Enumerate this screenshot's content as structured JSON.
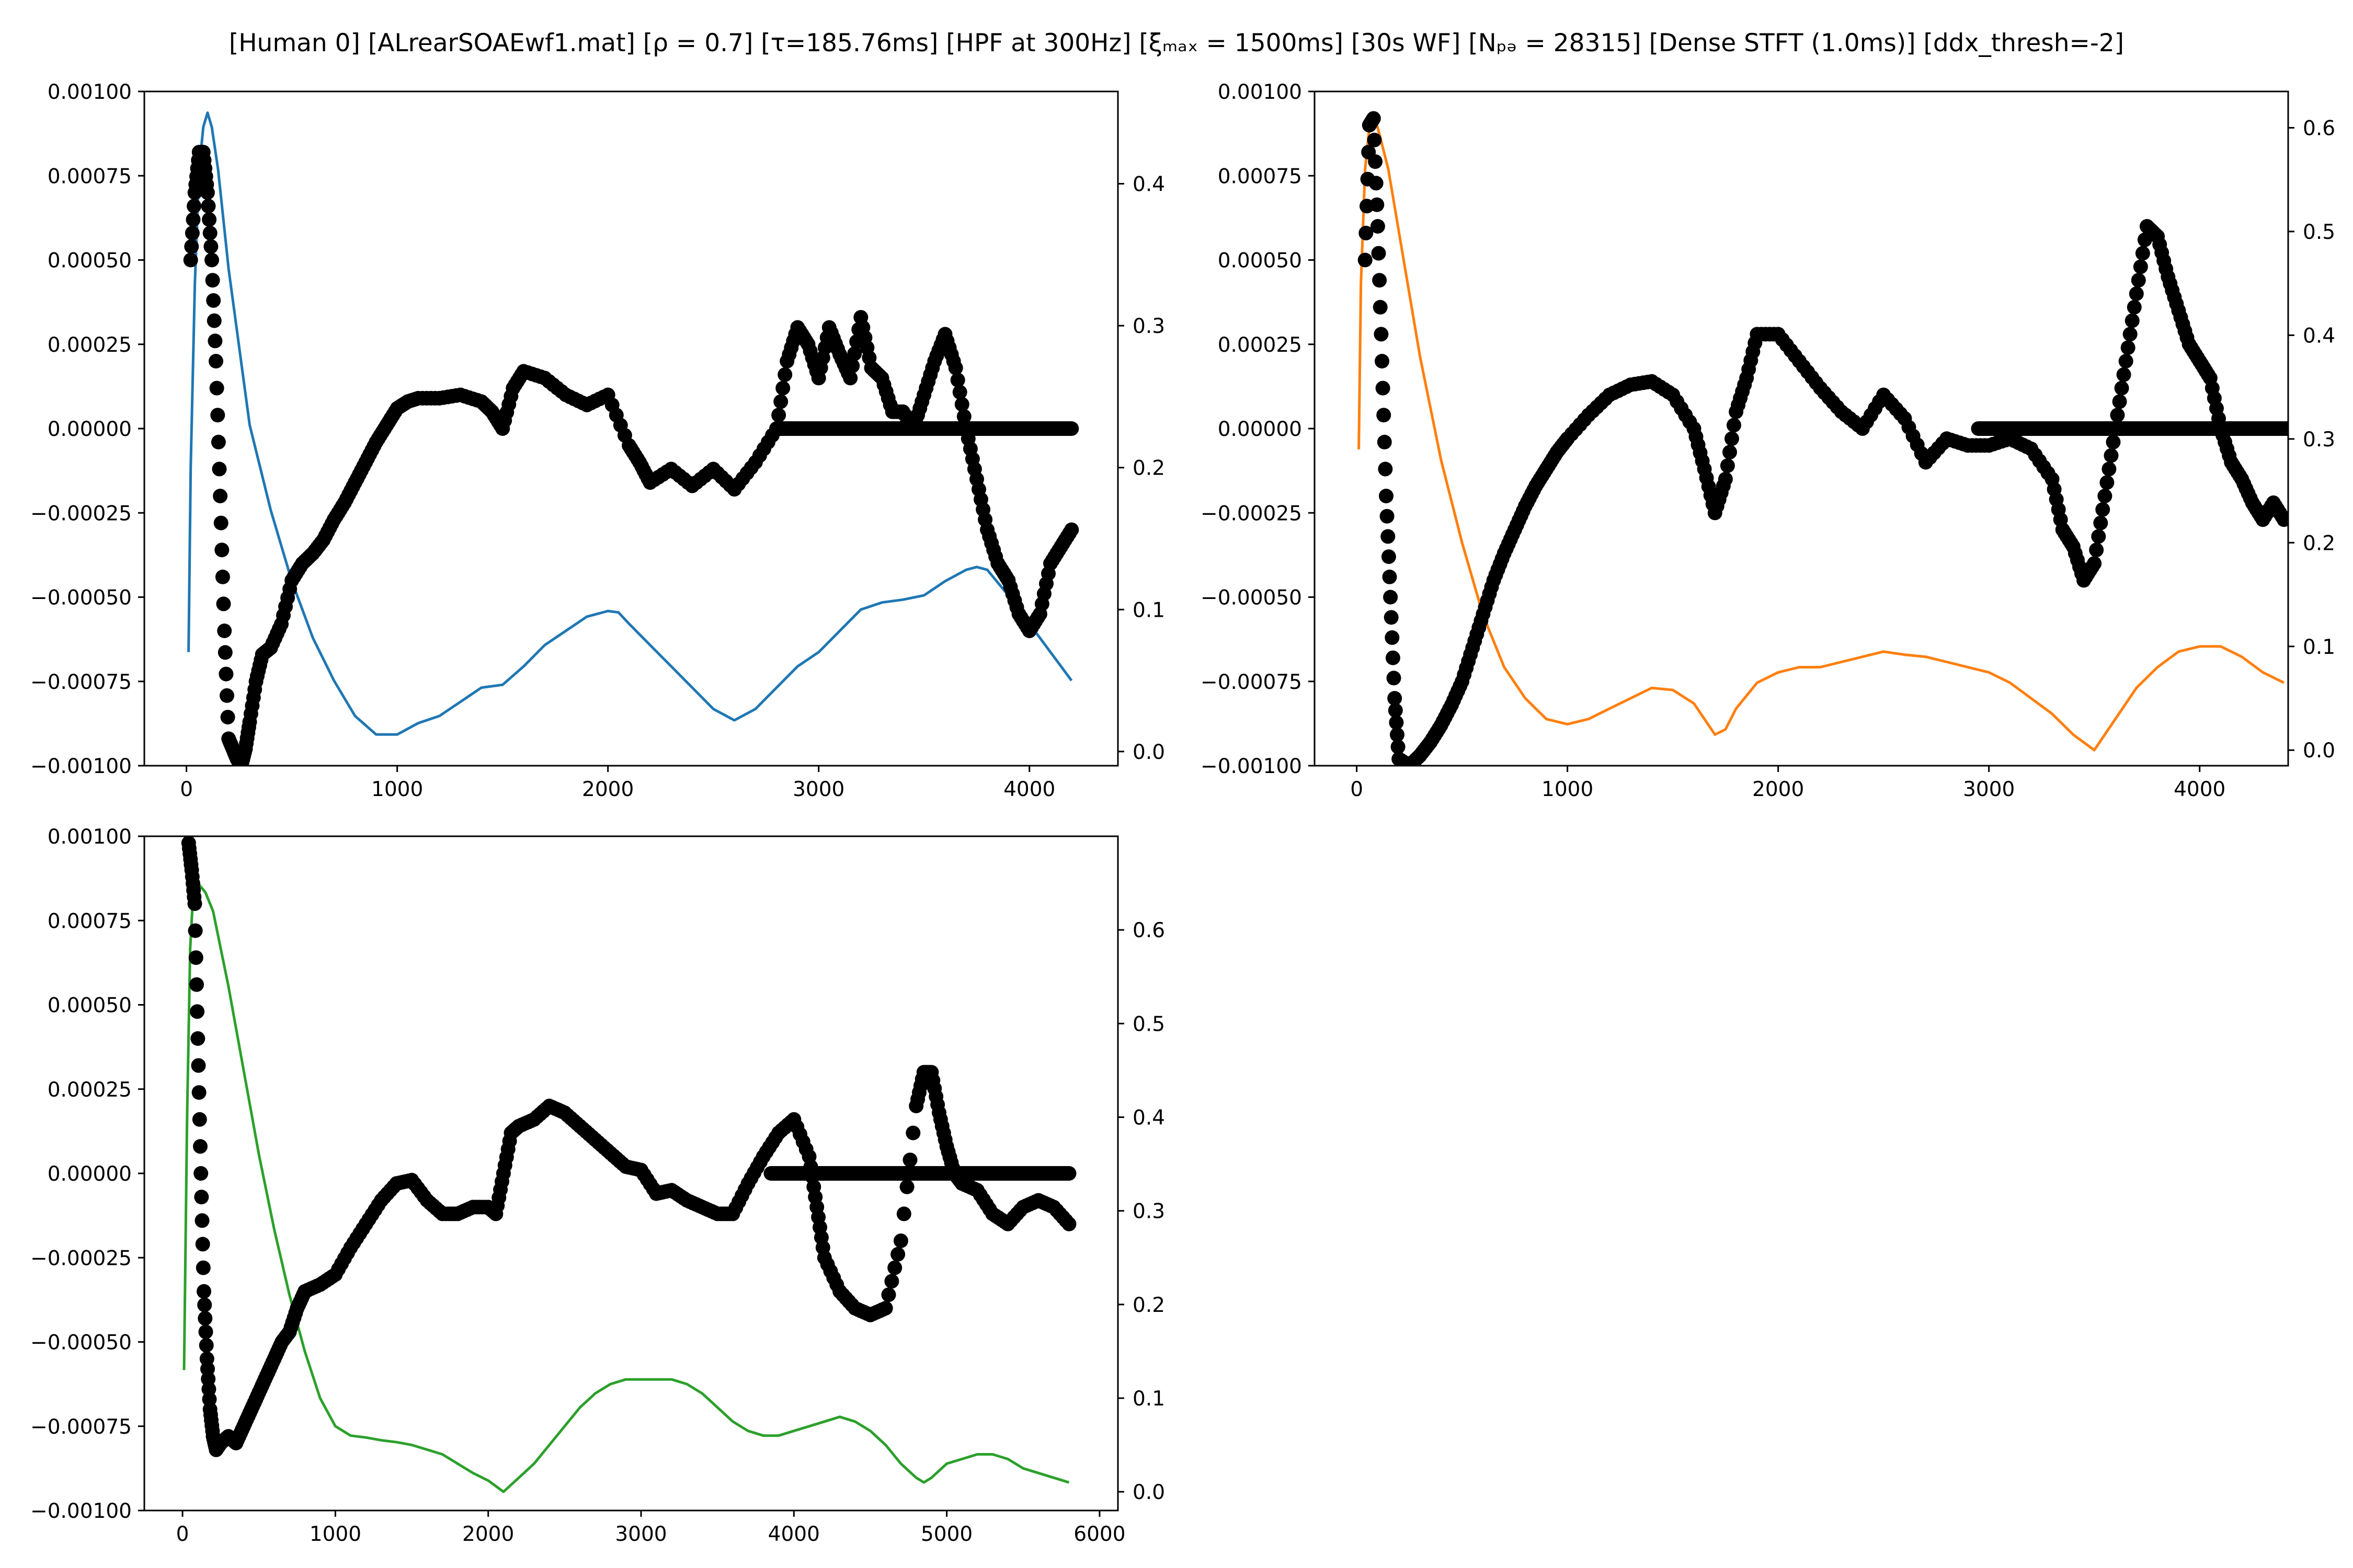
{
  "title": "[Human 0]   [ALrearSOAEwf1.mat]   [ρ = 0.7]   [τ=185.76ms]   [HPF at 300Hz]   [ξₘₐₓ = 1500ms]   [30s WF]   [Nₚₔ = 28315]   [Dense STFT (1.0ms)]   [ddx_thresh=-2]",
  "chart_data": [
    {
      "type": "line+scatter",
      "xlim": [
        -200,
        4420
      ],
      "x_ticks": [
        0,
        1000,
        2000,
        3000,
        4000
      ],
      "left_ylim": [
        -0.001,
        0.001
      ],
      "left_ticks": [
        -0.001,
        -0.00075,
        -0.0005,
        -0.00025,
        0.0,
        0.00025,
        0.0005,
        0.00075,
        0.001
      ],
      "left_tick_labels": [
        "−0.00100",
        "−0.00075",
        "−0.00050",
        "−0.00025",
        "0.00000",
        "0.00025",
        "0.00050",
        "0.00075",
        "0.00100"
      ],
      "right_ylim": [
        -0.01,
        0.465
      ],
      "right_ticks": [
        0.0,
        0.1,
        0.2,
        0.3,
        0.4
      ],
      "right_tick_labels": [
        "0.0",
        "0.1",
        "0.2",
        "0.3",
        "0.4"
      ],
      "line_color": "#1f77b4",
      "line_axis": "right",
      "line": {
        "x": [
          10,
          20,
          40,
          60,
          80,
          100,
          120,
          150,
          200,
          300,
          400,
          500,
          600,
          700,
          800,
          900,
          1000,
          1100,
          1200,
          1300,
          1400,
          1500,
          1600,
          1700,
          1800,
          1900,
          2000,
          2050,
          2100,
          2200,
          2300,
          2400,
          2500,
          2600,
          2700,
          2800,
          2900,
          3000,
          3100,
          3200,
          3300,
          3400,
          3500,
          3600,
          3700,
          3750,
          3800,
          3900,
          4000,
          4100,
          4200
        ],
        "y": [
          0.07,
          0.2,
          0.33,
          0.41,
          0.44,
          0.45,
          0.44,
          0.41,
          0.34,
          0.23,
          0.17,
          0.12,
          0.08,
          0.05,
          0.025,
          0.012,
          0.012,
          0.02,
          0.025,
          0.035,
          0.045,
          0.047,
          0.06,
          0.075,
          0.085,
          0.095,
          0.099,
          0.098,
          0.09,
          0.075,
          0.06,
          0.045,
          0.03,
          0.022,
          0.03,
          0.045,
          0.06,
          0.07,
          0.085,
          0.1,
          0.105,
          0.107,
          0.11,
          0.12,
          0.128,
          0.13,
          0.128,
          0.11,
          0.09,
          0.07,
          0.05
        ]
      },
      "scatter": {
        "x": [
          20,
          40,
          60,
          80,
          100,
          120,
          140,
          160,
          180,
          200,
          220,
          240,
          260,
          280,
          300,
          330,
          360,
          400,
          450,
          500,
          550,
          600,
          650,
          700,
          750,
          800,
          850,
          900,
          950,
          1000,
          1050,
          1100,
          1200,
          1300,
          1400,
          1450,
          1500,
          1550,
          1600,
          1700,
          1800,
          1900,
          2000,
          2100,
          2150,
          2200,
          2300,
          2400,
          2500,
          2600,
          2700,
          2800,
          2850,
          2900,
          2950,
          3000,
          3050,
          3100,
          3150,
          3200,
          3250,
          3300,
          3350,
          3400,
          3450,
          3500,
          3550,
          3600,
          3650,
          3700,
          3750,
          3800,
          3850,
          3900,
          3950,
          4000,
          4050,
          4100,
          4150,
          4200
        ],
        "y": [
          0.0005,
          0.0007,
          0.00082,
          0.00082,
          0.0007,
          0.0005,
          0.0002,
          -0.0002,
          -0.0006,
          -0.00092,
          -0.00095,
          -0.00098,
          -0.001,
          -0.00095,
          -0.00087,
          -0.00075,
          -0.00067,
          -0.00065,
          -0.00058,
          -0.00045,
          -0.0004,
          -0.00037,
          -0.00033,
          -0.00027,
          -0.00022,
          -0.00016,
          -0.0001,
          -4e-05,
          1e-05,
          6e-05,
          8e-05,
          9e-05,
          9e-05,
          0.0001,
          8e-05,
          5e-05,
          0.0,
          0.00012,
          0.00017,
          0.00015,
          0.0001,
          7e-05,
          0.0001,
          -5e-05,
          -0.0001,
          -0.00016,
          -0.00012,
          -0.00017,
          -0.00012,
          -0.00018,
          -0.0001,
          0.0,
          0.0002,
          0.0003,
          0.00025,
          0.00015,
          0.0003,
          0.00022,
          0.00015,
          0.00033,
          0.00018,
          0.00015,
          5e-05,
          5e-05,
          0.0,
          0.0001,
          0.0002,
          0.00028,
          0.00018,
          0.0,
          -0.00015,
          -0.0003,
          -0.0004,
          -0.00045,
          -0.00055,
          -0.0006,
          -0.00055,
          -0.0004,
          -0.00035,
          -0.0003
        ],
        "flat_band": {
          "x_start": 2800,
          "x_end": 4200,
          "y": 0.0
        }
      }
    },
    {
      "type": "line+scatter",
      "xlim": [
        -200,
        4420
      ],
      "x_ticks": [
        0,
        1000,
        2000,
        3000,
        4000
      ],
      "left_ylim": [
        -0.001,
        0.001
      ],
      "left_ticks": [
        -0.001,
        -0.00075,
        -0.0005,
        -0.00025,
        0.0,
        0.00025,
        0.0005,
        0.00075,
        0.001
      ],
      "left_tick_labels": [
        "−0.00100",
        "−0.00075",
        "−0.00050",
        "−0.00025",
        "0.00000",
        "0.00025",
        "0.00050",
        "0.00075",
        "0.00100"
      ],
      "right_ylim": [
        -0.015,
        0.635
      ],
      "right_ticks": [
        0.0,
        0.1,
        0.2,
        0.3,
        0.4,
        0.5,
        0.6
      ],
      "right_tick_labels": [
        "0.0",
        "0.1",
        "0.2",
        "0.3",
        "0.4",
        "0.5",
        "0.6"
      ],
      "line_color": "#ff7f0e",
      "line_axis": "right",
      "line": {
        "x": [
          10,
          20,
          40,
          60,
          80,
          100,
          150,
          200,
          300,
          400,
          500,
          600,
          700,
          800,
          900,
          1000,
          1100,
          1200,
          1300,
          1400,
          1500,
          1600,
          1700,
          1750,
          1800,
          1900,
          2000,
          2100,
          2200,
          2300,
          2400,
          2500,
          2600,
          2700,
          2800,
          2900,
          3000,
          3100,
          3200,
          3300,
          3400,
          3500,
          3600,
          3700,
          3800,
          3900,
          4000,
          4100,
          4200,
          4300,
          4400
        ],
        "y": [
          0.29,
          0.45,
          0.56,
          0.6,
          0.61,
          0.6,
          0.56,
          0.5,
          0.38,
          0.28,
          0.2,
          0.13,
          0.08,
          0.05,
          0.03,
          0.025,
          0.03,
          0.04,
          0.05,
          0.06,
          0.058,
          0.045,
          0.015,
          0.02,
          0.04,
          0.065,
          0.075,
          0.08,
          0.08,
          0.085,
          0.09,
          0.095,
          0.092,
          0.09,
          0.085,
          0.08,
          0.075,
          0.065,
          0.05,
          0.035,
          0.015,
          0.0,
          0.03,
          0.06,
          0.08,
          0.095,
          0.1,
          0.1,
          0.09,
          0.075,
          0.065
        ]
      },
      "scatter": {
        "x": [
          40,
          60,
          80,
          100,
          120,
          140,
          160,
          180,
          200,
          250,
          300,
          350,
          400,
          450,
          500,
          550,
          600,
          650,
          700,
          750,
          800,
          850,
          900,
          950,
          1000,
          1100,
          1200,
          1300,
          1400,
          1500,
          1600,
          1650,
          1700,
          1750,
          1800,
          1850,
          1900,
          2000,
          2100,
          2200,
          2300,
          2400,
          2500,
          2600,
          2700,
          2800,
          2900,
          3000,
          3100,
          3200,
          3300,
          3350,
          3400,
          3450,
          3500,
          3550,
          3600,
          3650,
          3700,
          3750,
          3800,
          3850,
          3900,
          3950,
          4000,
          4050,
          4100,
          4150,
          4200,
          4250,
          4300,
          4350,
          4400
        ],
        "y": [
          0.0005,
          0.0009,
          0.00092,
          0.0006,
          0.0002,
          -0.0002,
          -0.0005,
          -0.0008,
          -0.00098,
          -0.001,
          -0.00097,
          -0.00093,
          -0.00088,
          -0.00082,
          -0.00075,
          -0.00065,
          -0.00055,
          -0.00045,
          -0.00037,
          -0.0003,
          -0.00023,
          -0.00017,
          -0.00012,
          -7e-05,
          -3e-05,
          4e-05,
          0.0001,
          0.00013,
          0.00014,
          0.0001,
          0.0,
          -0.00012,
          -0.00025,
          -0.00015,
          5e-05,
          0.00015,
          0.00028,
          0.00028,
          0.0002,
          0.00012,
          5e-05,
          0.0,
          0.0001,
          3e-05,
          -0.0001,
          -3e-05,
          -5e-05,
          -5e-05,
          -3e-05,
          -6e-05,
          -0.00015,
          -0.0003,
          -0.00035,
          -0.00045,
          -0.0004,
          -0.0002,
          0.0,
          0.0002,
          0.0004,
          0.0006,
          0.00057,
          0.00045,
          0.00035,
          0.00025,
          0.0002,
          0.00015,
          0.0,
          -0.0001,
          -0.00015,
          -0.00022,
          -0.00027,
          -0.00022,
          -0.00027
        ]
      },
      "flat_band": {
        "x_start": 2950,
        "x_end": 4420,
        "y": 0.0
      }
    },
    {
      "type": "line+scatter",
      "xlim": [
        -250,
        6120
      ],
      "x_ticks": [
        0,
        1000,
        2000,
        3000,
        4000,
        5000,
        6000
      ],
      "left_ylim": [
        -0.001,
        0.001
      ],
      "left_ticks": [
        -0.001,
        -0.00075,
        -0.0005,
        -0.00025,
        0.0,
        0.00025,
        0.0005,
        0.00075,
        0.001
      ],
      "left_tick_labels": [
        "−0.00100",
        "−0.00075",
        "−0.00050",
        "−0.00025",
        "0.00000",
        "0.00025",
        "0.00050",
        "0.00075",
        "0.00100"
      ],
      "right_ylim": [
        -0.02,
        0.7
      ],
      "right_ticks": [
        0.0,
        0.1,
        0.2,
        0.3,
        0.4,
        0.5,
        0.6
      ],
      "right_tick_labels": [
        "0.0",
        "0.1",
        "0.2",
        "0.3",
        "0.4",
        "0.5",
        "0.6"
      ],
      "line_color": "#2ca02c",
      "line_axis": "right",
      "line": {
        "x": [
          10,
          30,
          50,
          70,
          100,
          150,
          200,
          300,
          400,
          500,
          600,
          700,
          800,
          900,
          1000,
          1100,
          1200,
          1300,
          1400,
          1500,
          1600,
          1700,
          1800,
          1900,
          2000,
          2100,
          2200,
          2300,
          2400,
          2500,
          2600,
          2700,
          2800,
          2900,
          3000,
          3100,
          3200,
          3300,
          3400,
          3500,
          3600,
          3700,
          3800,
          3900,
          4000,
          4100,
          4200,
          4300,
          4400,
          4500,
          4600,
          4700,
          4800,
          4850,
          4900,
          5000,
          5100,
          5200,
          5300,
          5400,
          5500,
          5600,
          5700,
          5800
        ],
        "y": [
          0.13,
          0.4,
          0.58,
          0.64,
          0.65,
          0.64,
          0.62,
          0.54,
          0.45,
          0.36,
          0.28,
          0.21,
          0.15,
          0.1,
          0.07,
          0.06,
          0.058,
          0.055,
          0.053,
          0.05,
          0.045,
          0.04,
          0.03,
          0.02,
          0.012,
          0.0,
          0.015,
          0.03,
          0.05,
          0.07,
          0.09,
          0.105,
          0.115,
          0.12,
          0.12,
          0.12,
          0.12,
          0.115,
          0.105,
          0.09,
          0.075,
          0.065,
          0.06,
          0.06,
          0.065,
          0.07,
          0.075,
          0.08,
          0.075,
          0.065,
          0.05,
          0.03,
          0.015,
          0.01,
          0.015,
          0.03,
          0.035,
          0.04,
          0.04,
          0.035,
          0.025,
          0.02,
          0.015,
          0.01
        ]
      },
      "scatter": {
        "x": [
          40,
          60,
          80,
          100,
          120,
          140,
          160,
          180,
          200,
          220,
          250,
          300,
          350,
          400,
          450,
          500,
          550,
          600,
          650,
          700,
          750,
          800,
          900,
          1000,
          1100,
          1200,
          1300,
          1400,
          1500,
          1600,
          1700,
          1800,
          1900,
          2000,
          2050,
          2100,
          2150,
          2200,
          2300,
          2400,
          2500,
          2600,
          2700,
          2800,
          2900,
          3000,
          3100,
          3200,
          3300,
          3400,
          3500,
          3600,
          3700,
          3800,
          3900,
          4000,
          4100,
          4150,
          4200,
          4300,
          4400,
          4500,
          4600,
          4700,
          4800,
          4850,
          4900,
          4950,
          5000,
          5050,
          5100,
          5200,
          5300,
          5400,
          5500,
          5600,
          5700,
          5800
        ],
        "y": [
          0.00098,
          0.0009,
          0.0008,
          0.0004,
          0.0,
          -0.00035,
          -0.00055,
          -0.0007,
          -0.00078,
          -0.00082,
          -0.0008,
          -0.00078,
          -0.0008,
          -0.00075,
          -0.0007,
          -0.00065,
          -0.0006,
          -0.00055,
          -0.0005,
          -0.00047,
          -0.0004,
          -0.00035,
          -0.00033,
          -0.0003,
          -0.00022,
          -0.00015,
          -8e-05,
          -3e-05,
          -2e-05,
          -8e-05,
          -0.00012,
          -0.00012,
          -0.0001,
          -0.0001,
          -0.00012,
          0.0,
          0.00012,
          0.00014,
          0.00016,
          0.0002,
          0.00018,
          0.00014,
          0.0001,
          6e-05,
          2e-05,
          1e-05,
          -6e-05,
          -5e-05,
          -8e-05,
          -0.0001,
          -0.00012,
          -0.00012,
          -3e-05,
          5e-05,
          0.00012,
          0.00016,
          5e-05,
          -0.0001,
          -0.00025,
          -0.00035,
          -0.0004,
          -0.00042,
          -0.0004,
          -0.0002,
          0.0002,
          0.0003,
          0.0003,
          0.00018,
          8e-05,
          0.0,
          -3e-05,
          -5e-05,
          -0.00012,
          -0.00015,
          -0.0001,
          -8e-05,
          -0.0001,
          -0.00015
        ],
        "flat_band": {
          "x_start": 3850,
          "x_end": 5800,
          "y": 0.0
        }
      }
    }
  ]
}
